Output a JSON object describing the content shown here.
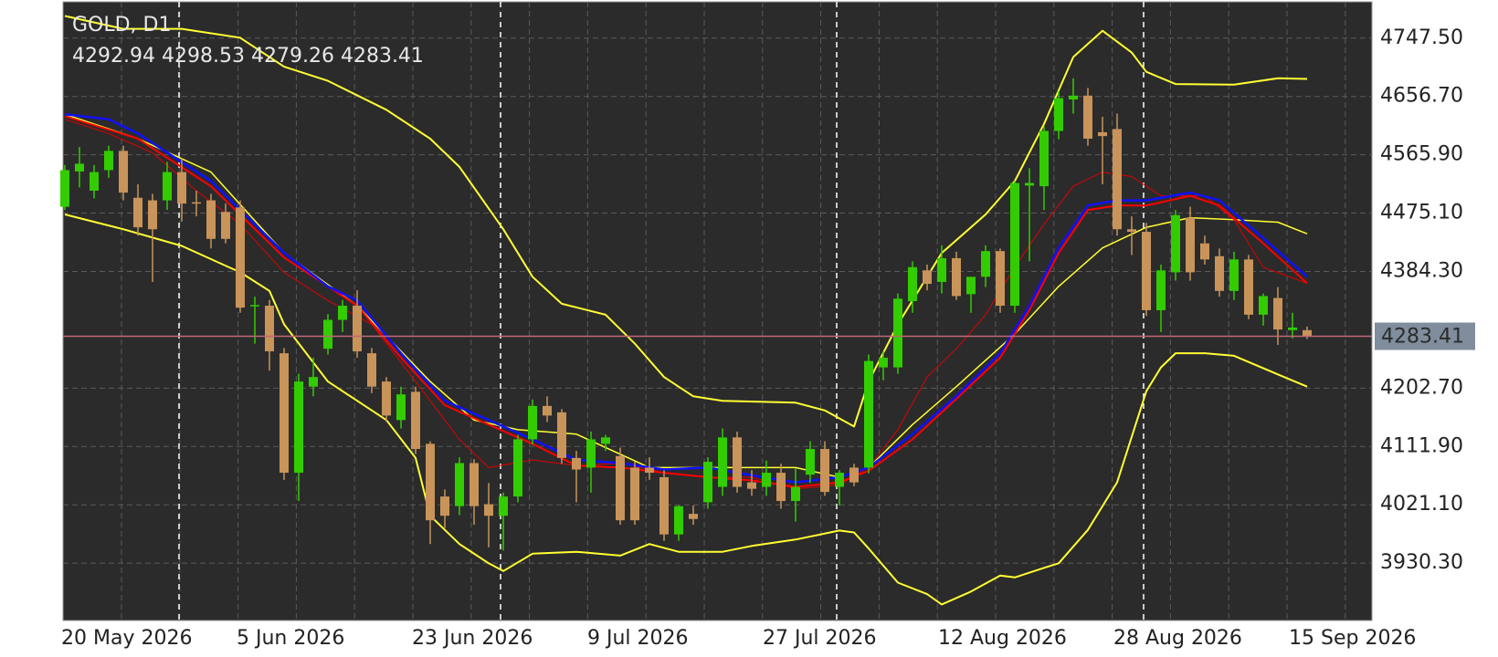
{
  "chart_data": {
    "type": "candlestick",
    "title": "GOLD, D1",
    "up_color": "#33cc00",
    "down_color": "#c8945a",
    "ylim": [
      3841,
      4804
    ],
    "yticks": [
      {
        "value": 4747.5,
        "label": "4747.50"
      },
      {
        "value": 4656.7,
        "label": "4656.70"
      },
      {
        "value": 4565.9,
        "label": "4565.90"
      },
      {
        "value": 4475.1,
        "label": "4475.10"
      },
      {
        "value": 4384.3,
        "label": "4384.30"
      },
      {
        "value": 4202.7,
        "label": "4202.70"
      },
      {
        "value": 4111.9,
        "label": "4111.90"
      },
      {
        "value": 4021.1,
        "label": "4021.10"
      },
      {
        "value": 3930.3,
        "label": "3930.30"
      }
    ],
    "grid": true,
    "price_line_color": "#c06878",
    "separators": [
      8,
      30,
      53,
      74
    ],
    "categories": [
      "20 May 2026",
      null,
      null,
      null,
      null,
      null,
      null,
      null,
      null,
      null,
      null,
      null,
      "5 Jun 2026",
      null,
      null,
      null,
      null,
      null,
      null,
      null,
      null,
      null,
      null,
      null,
      "23 Jun 2026",
      null,
      null,
      null,
      null,
      null,
      null,
      null,
      null,
      null,
      null,
      null,
      "9 Jul 2026",
      null,
      null,
      null,
      null,
      null,
      null,
      null,
      null,
      null,
      null,
      null,
      "27 Jul 2026",
      null,
      null,
      null,
      null,
      null,
      null,
      null,
      null,
      null,
      null,
      null,
      "12 Aug 2026",
      null,
      null,
      null,
      null,
      null,
      null,
      null,
      null,
      null,
      null,
      null,
      "28 Aug 2026",
      null,
      null,
      null,
      null,
      null,
      null,
      null,
      null,
      null,
      null,
      null,
      "15 Sep 2026",
      null
    ],
    "open": [
      4485,
      4540,
      4510,
      4542,
      4572,
      4499,
      4495,
      4495,
      4539,
      4492,
      4495,
      4477,
      4484,
      4330,
      4331,
      4257,
      4071,
      4205,
      4264,
      4309,
      4331,
      4257,
      4213,
      4153,
      4197,
      4116,
      4034,
      4019,
      4086,
      4022,
      4004,
      4034,
      4123,
      4175,
      4165,
      4094,
      4079,
      4116,
      4097,
      4079,
      4079,
      4064,
      3975,
      4007,
      4025,
      4049,
      4126,
      4056,
      4049,
      4071,
      4027,
      4068,
      4108,
      4049,
      4079,
      4079,
      4235,
      4235,
      4338,
      4386,
      4368,
      4405,
      4349,
      4376,
      4416,
      4331,
      4518,
      4517,
      4603,
      4652,
      4658,
      4601,
      4606,
      4450,
      4446,
      4324,
      4383,
      4468,
      4428,
      4408,
      4354,
      4403,
      4317,
      4343,
      4293,
      4292.94
    ],
    "high": [
      4550,
      4578,
      4550,
      4580,
      4580,
      4520,
      4505,
      4555,
      4560,
      4510,
      4505,
      4490,
      4495,
      4345,
      4340,
      4265,
      4225,
      4250,
      4318,
      4340,
      4355,
      4265,
      4220,
      4205,
      4205,
      4120,
      4045,
      4095,
      4092,
      4055,
      4040,
      4130,
      4185,
      4190,
      4170,
      4105,
      4135,
      4130,
      4110,
      4088,
      4095,
      4075,
      4020,
      4020,
      4095,
      4140,
      4135,
      4075,
      4090,
      4085,
      4078,
      4120,
      4120,
      4075,
      4085,
      4255,
      4260,
      4350,
      4400,
      4395,
      4425,
      4415,
      4375,
      4425,
      4420,
      4525,
      4545,
      4610,
      4665,
      4685,
      4670,
      4625,
      4630,
      4470,
      4460,
      4395,
      4480,
      4485,
      4440,
      4420,
      4415,
      4410,
      4350,
      4360,
      4320,
      4298.53
    ],
    "low": [
      4480,
      4515,
      4498,
      4530,
      4495,
      4440,
      4368,
      4480,
      4462,
      4470,
      4420,
      4428,
      4320,
      4272,
      4230,
      4060,
      4027,
      4190,
      4255,
      4290,
      4250,
      4195,
      4150,
      4140,
      4100,
      3960,
      3985,
      4005,
      3990,
      3955,
      3950,
      4025,
      4115,
      4150,
      4085,
      4025,
      4040,
      4105,
      3990,
      3990,
      4060,
      3965,
      3965,
      3990,
      4015,
      4035,
      4040,
      4035,
      4035,
      4015,
      3995,
      4055,
      4035,
      4020,
      4050,
      4070,
      4215,
      4225,
      4320,
      4355,
      4350,
      4340,
      4320,
      4360,
      4320,
      4320,
      4400,
      4480,
      4590,
      4630,
      4580,
      4520,
      4440,
      4410,
      4315,
      4290,
      4370,
      4370,
      4395,
      4345,
      4340,
      4310,
      4300,
      4270,
      4280,
      4279.26
    ],
    "close": [
      4542,
      4552,
      4539,
      4572,
      4507,
      4453,
      4450,
      4539,
      4490,
      4490,
      4435,
      4435,
      4328,
      4332,
      4260,
      4071,
      4213,
      4220,
      4309,
      4331,
      4260,
      4205,
      4160,
      4193,
      4108,
      3997,
      4004,
      4086,
      4019,
      4004,
      4034,
      4123,
      4175,
      4160,
      4094,
      4076,
      4123,
      4126,
      3997,
      3997,
      4071,
      3975,
      4019,
      3999,
      4088,
      4126,
      4049,
      4046,
      4071,
      4027,
      4049,
      4108,
      4041,
      4071,
      4056,
      4245,
      4250,
      4342,
      4391,
      4365,
      4405,
      4346,
      4376,
      4416,
      4331,
      4522,
      4522,
      4603,
      4654,
      4658,
      4591,
      4595,
      4450,
      4446,
      4324,
      4386,
      4472,
      4383,
      4403,
      4354,
      4403,
      4317,
      4346,
      4294,
      4297,
      4283.41
    ],
    "overlays": [
      {
        "color": "#ffff33",
        "width": 2,
        "x": [
          0,
          4,
          8,
          12,
          15,
          18,
          22,
          25,
          27,
          30,
          32,
          34,
          37,
          39,
          41,
          43,
          45,
          50,
          52,
          54,
          55,
          57,
          60,
          63,
          65,
          67,
          69,
          71,
          73,
          74,
          76,
          80,
          83,
          85
        ],
        "values": [
          4782,
          4762,
          4762,
          4748,
          4703,
          4681,
          4636,
          4591,
          4547,
          4450,
          4376,
          4334,
          4317,
          4272,
          4220,
          4190,
          4183,
          4180,
          4168,
          4143,
          4213,
          4302,
          4413,
          4473,
          4525,
          4614,
          4718,
          4759,
          4725,
          4695,
          4676,
          4675,
          4685,
          4684
        ]
      },
      {
        "color": "#ffff33",
        "width": 2,
        "x": [
          0,
          4,
          8,
          12,
          14,
          15,
          18,
          22,
          24,
          25,
          27,
          29,
          30,
          32,
          35,
          38,
          40,
          42,
          45,
          47,
          50,
          53,
          54,
          55,
          57,
          59,
          60,
          62,
          64,
          65,
          67,
          68,
          70,
          72,
          74,
          75,
          76,
          78,
          80,
          83,
          85
        ],
        "values": [
          4473,
          4450,
          4424,
          4383,
          4354,
          4302,
          4213,
          4153,
          4094,
          4004,
          3960,
          3930,
          3918,
          3945,
          3948,
          3942,
          3960,
          3948,
          3948,
          3957,
          3967,
          3981,
          3978,
          3953,
          3900,
          3882,
          3866,
          3886,
          3911,
          3908,
          3923,
          3930,
          3982,
          4056,
          4198,
          4235,
          4257,
          4257,
          4253,
          4224,
          4205
        ]
      },
      {
        "color": "#ffff33",
        "width": 1.5,
        "x": [
          0,
          5,
          10,
          15,
          20,
          25,
          28,
          31,
          35,
          40,
          45,
          50,
          53,
          55,
          58,
          61,
          65,
          68,
          71,
          74,
          77,
          80,
          83,
          85
        ],
        "values": [
          4629,
          4591,
          4539,
          4413,
          4331,
          4213,
          4153,
          4138,
          4131,
          4079,
          4079,
          4079,
          4064,
          4079,
          4146,
          4205,
          4287,
          4361,
          4421,
          4453,
          4468,
          4465,
          4461,
          4443
        ]
      },
      {
        "color": "#e00000",
        "width": 1,
        "x": [
          0,
          3,
          6,
          9,
          12,
          15,
          18,
          21,
          24,
          27,
          29,
          32,
          35,
          38,
          41,
          44,
          47,
          50,
          53,
          55,
          57,
          59,
          61,
          63,
          65,
          67,
          69,
          71,
          73,
          75,
          78,
          80,
          82,
          85
        ],
        "values": [
          4621,
          4599,
          4569,
          4510,
          4458,
          4383,
          4339,
          4302,
          4213,
          4123,
          4079,
          4091,
          4082,
          4086,
          4071,
          4064,
          4064,
          4046,
          4052,
          4079,
          4138,
          4220,
          4264,
          4317,
          4391,
          4458,
          4517,
          4539,
          4532,
          4502,
          4502,
          4465,
          4391,
          4366
        ]
      },
      {
        "color": "#ff0000",
        "width": 2,
        "x": [
          0,
          5,
          10,
          15,
          20,
          23,
          26,
          29,
          32,
          35,
          38,
          41,
          44,
          47,
          50,
          53,
          55,
          58,
          61,
          64,
          66,
          68,
          70,
          72,
          74,
          77,
          79,
          82,
          85
        ],
        "values": [
          4626,
          4591,
          4517,
          4406,
          4331,
          4250,
          4176,
          4146,
          4116,
          4082,
          4079,
          4071,
          4064,
          4059,
          4049,
          4056,
          4074,
          4123,
          4186,
          4250,
          4324,
          4413,
          4480,
          4487,
          4487,
          4502,
          4487,
          4428,
          4366
        ]
      },
      {
        "color": "#1010ff",
        "width": 2.5,
        "x": [
          0,
          3,
          5,
          10,
          15,
          18,
          20,
          23,
          26,
          29,
          32,
          35,
          38,
          41,
          44,
          47,
          50,
          53,
          55,
          58,
          61,
          64,
          66,
          68,
          70,
          72,
          74,
          77,
          79,
          82,
          85
        ],
        "values": [
          4629,
          4621,
          4599,
          4525,
          4413,
          4361,
          4339,
          4257,
          4183,
          4153,
          4123,
          4091,
          4086,
          4076,
          4079,
          4067,
          4056,
          4064,
          4079,
          4131,
          4190,
          4257,
          4331,
          4421,
          4487,
          4495,
          4495,
          4507,
          4495,
          4436,
          4376
        ]
      }
    ]
  }
}
